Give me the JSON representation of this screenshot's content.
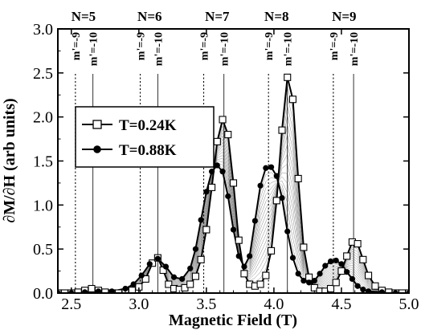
{
  "chart_data": {
    "type": "line",
    "title": "",
    "xlabel": "Magnetic Field (T)",
    "ylabel": "∂M/∂H (arb units)",
    "xlim": [
      2.4,
      5.0
    ],
    "ylim": [
      0.0,
      3.0
    ],
    "xticks": [
      "2.5",
      "3.0",
      "3.5",
      "4.0",
      "4.5",
      "5.0"
    ],
    "yticks": [
      "0.0",
      "0.5",
      "1.0",
      "1.5",
      "2.0",
      "2.5",
      "3.0"
    ],
    "grid": false,
    "legend_position": "middle-left",
    "level_labels": [
      {
        "label": "N=5",
        "x": 2.59
      },
      {
        "label": "N=6",
        "x": 3.08
      },
      {
        "label": "N=7",
        "x": 3.58
      },
      {
        "label": "N=8",
        "x": 4.02
      },
      {
        "label": "N=9",
        "x": 4.52
      }
    ],
    "transition_lines": [
      {
        "label": "m'=-9",
        "x": 2.53,
        "style": "dotted"
      },
      {
        "label": "m'=-10",
        "x": 2.66,
        "style": "solid"
      },
      {
        "label": "m'=-9",
        "x": 3.01,
        "style": "dotted"
      },
      {
        "label": "m'=-10",
        "x": 3.14,
        "style": "solid"
      },
      {
        "label": "m'=-9",
        "x": 3.48,
        "style": "dotted"
      },
      {
        "label": "m'=-10",
        "x": 3.63,
        "style": "solid"
      },
      {
        "label": "m'=-9",
        "x": 3.96,
        "style": "dotted"
      },
      {
        "label": "m'=-10",
        "x": 4.1,
        "style": "solid"
      },
      {
        "label": "m'=-9",
        "x": 4.44,
        "style": "dotted"
      },
      {
        "label": "m'=-10",
        "x": 4.59,
        "style": "solid"
      }
    ],
    "series": [
      {
        "name": "T=0.24K",
        "marker": "open-square",
        "color": "#000000",
        "points": [
          [
            2.4,
            0.0
          ],
          [
            2.45,
            0.0
          ],
          [
            2.5,
            0.0
          ],
          [
            2.55,
            0.01
          ],
          [
            2.6,
            0.03
          ],
          [
            2.65,
            0.05
          ],
          [
            2.7,
            0.03
          ],
          [
            2.75,
            0.01
          ],
          [
            2.8,
            0.0
          ],
          [
            2.85,
            0.0
          ],
          [
            2.9,
            0.01
          ],
          [
            2.95,
            0.03
          ],
          [
            3.0,
            0.07
          ],
          [
            3.05,
            0.16
          ],
          [
            3.1,
            0.34
          ],
          [
            3.14,
            0.4
          ],
          [
            3.18,
            0.26
          ],
          [
            3.22,
            0.1
          ],
          [
            3.26,
            0.05
          ],
          [
            3.3,
            0.04
          ],
          [
            3.34,
            0.06
          ],
          [
            3.38,
            0.1
          ],
          [
            3.42,
            0.19
          ],
          [
            3.46,
            0.38
          ],
          [
            3.5,
            0.72
          ],
          [
            3.54,
            1.2
          ],
          [
            3.58,
            1.72
          ],
          [
            3.62,
            1.97
          ],
          [
            3.66,
            1.8
          ],
          [
            3.7,
            1.25
          ],
          [
            3.74,
            0.6
          ],
          [
            3.78,
            0.22
          ],
          [
            3.82,
            0.1
          ],
          [
            3.86,
            0.08
          ],
          [
            3.9,
            0.1
          ],
          [
            3.94,
            0.2
          ],
          [
            3.98,
            0.48
          ],
          [
            4.02,
            1.05
          ],
          [
            4.06,
            1.85
          ],
          [
            4.1,
            2.45
          ],
          [
            4.14,
            2.2
          ],
          [
            4.18,
            1.3
          ],
          [
            4.22,
            0.52
          ],
          [
            4.26,
            0.18
          ],
          [
            4.3,
            0.06
          ],
          [
            4.34,
            0.02
          ],
          [
            4.38,
            0.02
          ],
          [
            4.42,
            0.05
          ],
          [
            4.46,
            0.12
          ],
          [
            4.5,
            0.25
          ],
          [
            4.54,
            0.42
          ],
          [
            4.58,
            0.58
          ],
          [
            4.62,
            0.56
          ],
          [
            4.66,
            0.38
          ],
          [
            4.7,
            0.2
          ],
          [
            4.75,
            0.08
          ],
          [
            4.8,
            0.03
          ],
          [
            4.85,
            0.01
          ],
          [
            4.9,
            0.0
          ],
          [
            4.95,
            0.0
          ],
          [
            5.0,
            0.0
          ]
        ]
      },
      {
        "name": "T=0.88K",
        "marker": "filled-circle",
        "color": "#000000",
        "points": [
          [
            2.4,
            0.0
          ],
          [
            2.5,
            0.0
          ],
          [
            2.6,
            0.01
          ],
          [
            2.7,
            0.02
          ],
          [
            2.8,
            0.02
          ],
          [
            2.9,
            0.05
          ],
          [
            2.96,
            0.1
          ],
          [
            3.02,
            0.2
          ],
          [
            3.08,
            0.33
          ],
          [
            3.14,
            0.39
          ],
          [
            3.2,
            0.3
          ],
          [
            3.26,
            0.18
          ],
          [
            3.32,
            0.16
          ],
          [
            3.38,
            0.28
          ],
          [
            3.42,
            0.5
          ],
          [
            3.46,
            0.83
          ],
          [
            3.5,
            1.15
          ],
          [
            3.54,
            1.38
          ],
          [
            3.58,
            1.45
          ],
          [
            3.62,
            1.38
          ],
          [
            3.66,
            1.1
          ],
          [
            3.7,
            0.72
          ],
          [
            3.74,
            0.42
          ],
          [
            3.78,
            0.3
          ],
          [
            3.82,
            0.42
          ],
          [
            3.86,
            0.82
          ],
          [
            3.9,
            1.22
          ],
          [
            3.94,
            1.42
          ],
          [
            3.98,
            1.43
          ],
          [
            4.02,
            1.33
          ],
          [
            4.06,
            1.08
          ],
          [
            4.1,
            0.7
          ],
          [
            4.14,
            0.4
          ],
          [
            4.18,
            0.22
          ],
          [
            4.22,
            0.14
          ],
          [
            4.26,
            0.12
          ],
          [
            4.3,
            0.14
          ],
          [
            4.34,
            0.22
          ],
          [
            4.38,
            0.31
          ],
          [
            4.42,
            0.36
          ],
          [
            4.46,
            0.37
          ],
          [
            4.5,
            0.33
          ],
          [
            4.54,
            0.24
          ],
          [
            4.58,
            0.16
          ],
          [
            4.62,
            0.08
          ],
          [
            4.66,
            0.04
          ],
          [
            4.7,
            0.02
          ],
          [
            4.8,
            0.01
          ],
          [
            4.9,
            0.0
          ],
          [
            5.0,
            0.0
          ]
        ]
      }
    ]
  }
}
